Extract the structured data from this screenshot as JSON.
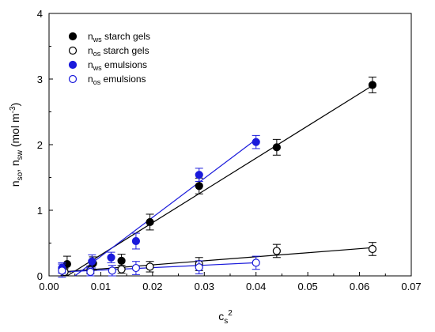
{
  "chart_data": {
    "type": "scatter",
    "title": "",
    "xlabel": {
      "base": "c",
      "sub": "s",
      "sup": "2"
    },
    "ylabel": {
      "parts": [
        {
          "base": "n",
          "sub": "so"
        },
        {
          "text": ", "
        },
        {
          "base": "n",
          "sub": "sw"
        },
        {
          "text": " (mol m"
        },
        {
          "sup": "-3"
        },
        {
          "text": ")"
        }
      ]
    },
    "xlim": [
      0,
      0.07
    ],
    "ylim": [
      0,
      4
    ],
    "xticks": [
      "0.00",
      "0.01",
      "0.02",
      "0.03",
      "0.04",
      "0.05",
      "0.06",
      "0.07"
    ],
    "yticks": [
      "0",
      "1",
      "2",
      "3",
      "4"
    ],
    "grid": false,
    "legend_position": "top-left",
    "series": [
      {
        "name": {
          "base": "n",
          "sub": "ws",
          "rest": " starch gels"
        },
        "color": "#000000",
        "marker": "filled-circle",
        "x": [
          0.0035,
          0.0085,
          0.014,
          0.0195,
          0.029,
          0.044,
          0.0625
        ],
        "y": [
          0.18,
          0.19,
          0.23,
          0.82,
          1.37,
          1.96,
          2.91
        ],
        "err": [
          0.12,
          0.1,
          0.1,
          0.12,
          0.12,
          0.12,
          0.12
        ],
        "fit": {
          "x": [
            0.0035,
            0.0625
          ],
          "y": [
            0.0,
            2.9
          ]
        }
      },
      {
        "name": {
          "base": "n",
          "sub": "os",
          "rest": " starch gels"
        },
        "color": "#000000",
        "marker": "open-circle",
        "x": [
          0.003,
          0.008,
          0.014,
          0.0195,
          0.029,
          0.044,
          0.0625
        ],
        "y": [
          0.06,
          0.09,
          0.1,
          0.14,
          0.18,
          0.38,
          0.41
        ],
        "err": [
          0.05,
          0.06,
          0.06,
          0.08,
          0.1,
          0.1,
          0.1
        ],
        "fit": {
          "x": [
            0.0025,
            0.0625
          ],
          "y": [
            0.06,
            0.43
          ]
        }
      },
      {
        "name": {
          "base": "n",
          "sub": "ws",
          "rest": " emulsions"
        },
        "color": "#1a1adb",
        "marker": "filled-circle",
        "x": [
          0.0025,
          0.0083,
          0.012,
          0.0168,
          0.029,
          0.04
        ],
        "y": [
          0.12,
          0.22,
          0.28,
          0.53,
          1.54,
          2.04
        ],
        "err": [
          0.08,
          0.1,
          0.08,
          0.12,
          0.1,
          0.1
        ],
        "fit": {
          "x": [
            0.005,
            0.04
          ],
          "y": [
            0.0,
            2.08
          ]
        }
      },
      {
        "name": {
          "base": "n",
          "sub": "os",
          "rest": " emulsions"
        },
        "color": "#1a1adb",
        "marker": "open-circle",
        "x": [
          0.0025,
          0.008,
          0.0122,
          0.0168,
          0.029,
          0.04
        ],
        "y": [
          0.08,
          0.06,
          0.08,
          0.12,
          0.13,
          0.2
        ],
        "err": [
          0.1,
          0.06,
          0.08,
          0.1,
          0.1,
          0.1
        ],
        "fit": {
          "x": [
            0.0025,
            0.04
          ],
          "y": [
            0.06,
            0.2
          ]
        }
      }
    ]
  }
}
